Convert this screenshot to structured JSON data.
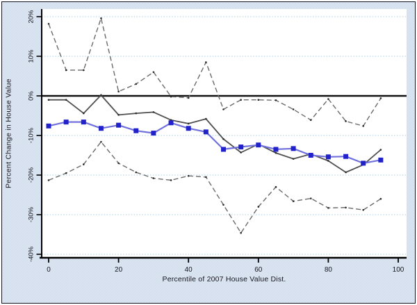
{
  "figure": {
    "background_color": "#dbe5f1",
    "border_color": "#15151f"
  },
  "chart_data": {
    "type": "line",
    "title": "",
    "xlabel": "Percentile of 2007 House Value Dist.",
    "ylabel": "Percent Change in House Value",
    "xlim": [
      0,
      100
    ],
    "ylim": [
      -42,
      21
    ],
    "grid": "horizontal dotted light-blue gridlines at every 10% except 0",
    "legend_position": "none",
    "reference_line_y": 0,
    "xticks": [
      0,
      20,
      40,
      60,
      80,
      100
    ],
    "xtick_labels": [
      "0",
      "20",
      "40",
      "60",
      "80",
      "100"
    ],
    "yticks": [
      20,
      10,
      0,
      -10,
      -20,
      -30,
      -40
    ],
    "ytick_labels": [
      "20%",
      "10%",
      "0%",
      "-10%",
      "-20%",
      "-30%",
      "-40%"
    ],
    "x": [
      0,
      5,
      10,
      15,
      20,
      25,
      30,
      35,
      40,
      45,
      50,
      55,
      60,
      65,
      70,
      75,
      80,
      85,
      90,
      95
    ],
    "series": [
      {
        "name": "ci_upper",
        "label": "upper confidence band (dashed)",
        "style": "dashed",
        "line_color": "#6a6a6a",
        "line_width": 1.4,
        "dot_color": "#2a2a2a",
        "values": [
          18.2,
          6.5,
          6.5,
          19.6,
          1.1,
          3.0,
          6.0,
          -0.2,
          -0.5,
          8.5,
          -3.4,
          -1.0,
          -1.0,
          -1.1,
          -3.4,
          -6.1,
          -0.8,
          -6.4,
          -7.6,
          -0.6
        ]
      },
      {
        "name": "ci_lower",
        "label": "lower confidence band (dashed)",
        "style": "dashed",
        "line_color": "#6a6a6a",
        "line_width": 1.4,
        "dot_color": "#2a2a2a",
        "values": [
          -21.3,
          -19.5,
          -17.3,
          -11.6,
          -17.0,
          -19.3,
          -20.8,
          -21.3,
          -20.2,
          -20.5,
          -27.5,
          -34.6,
          -28.0,
          -23.0,
          -26.6,
          -25.9,
          -28.3,
          -28.2,
          -28.8,
          -26.0
        ]
      },
      {
        "name": "secondary_estimate",
        "label": "solid gray line estimate",
        "style": "solid-dots",
        "line_color": "#4f4f4f",
        "line_width": 1.8,
        "dot_color": "#2a2a2a",
        "values": [
          -1.0,
          -1.0,
          -4.4,
          0.2,
          -4.8,
          -4.4,
          -4.1,
          -6.1,
          -7.0,
          -5.8,
          -10.9,
          -14.3,
          -12.2,
          -14.4,
          -15.9,
          -14.7,
          -16.4,
          -19.3,
          -17.4,
          -13.6
        ]
      },
      {
        "name": "point_estimate",
        "label": "blue square-marker estimate",
        "style": "solid-squares",
        "line_color": "#7070dd",
        "line_width": 2.2,
        "marker_color": "#2222cb",
        "values": [
          -7.6,
          -6.6,
          -6.6,
          -8.2,
          -7.4,
          -8.8,
          -9.4,
          -6.8,
          -8.2,
          -9.1,
          -13.5,
          -12.9,
          -12.4,
          -13.5,
          -13.3,
          -15.0,
          -15.4,
          -15.3,
          -17.0,
          -16.2
        ]
      }
    ],
    "colors": {
      "gridline": "#a9cfe0",
      "axis": "#000000",
      "zero_line": "#111111",
      "tick_label": "#15151f"
    }
  }
}
